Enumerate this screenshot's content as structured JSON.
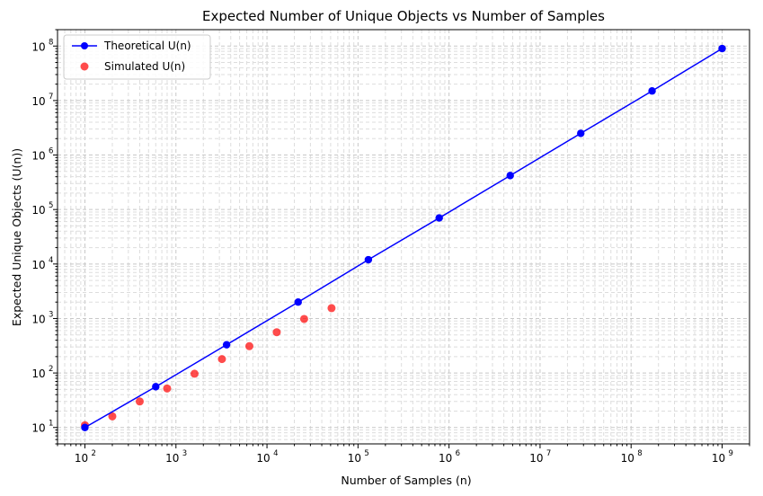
{
  "chart_data": {
    "type": "line",
    "title": "Expected Number of Unique Objects vs Number of Samples",
    "xlabel": "Number of Samples (n)",
    "ylabel": "Expected Unique Objects (U(n))",
    "xscale": "log",
    "yscale": "log",
    "xlim": [
      50,
      2000000000
    ],
    "ylim": [
      5,
      200000000
    ],
    "grid": true,
    "legend_position": "top-left",
    "x_ticks": [
      {
        "base": "10",
        "exp": "2",
        "value": 100
      },
      {
        "base": "10",
        "exp": "3",
        "value": 1000
      },
      {
        "base": "10",
        "exp": "4",
        "value": 10000
      },
      {
        "base": "10",
        "exp": "5",
        "value": 100000
      },
      {
        "base": "10",
        "exp": "6",
        "value": 1000000
      },
      {
        "base": "10",
        "exp": "7",
        "value": 10000000
      },
      {
        "base": "10",
        "exp": "8",
        "value": 100000000
      },
      {
        "base": "10",
        "exp": "9",
        "value": 1000000000
      }
    ],
    "y_ticks": [
      {
        "base": "10",
        "exp": "1",
        "value": 10
      },
      {
        "base": "10",
        "exp": "2",
        "value": 100
      },
      {
        "base": "10",
        "exp": "3",
        "value": 1000
      },
      {
        "base": "10",
        "exp": "4",
        "value": 10000
      },
      {
        "base": "10",
        "exp": "5",
        "value": 100000
      },
      {
        "base": "10",
        "exp": "6",
        "value": 1000000
      },
      {
        "base": "10",
        "exp": "7",
        "value": 10000000
      },
      {
        "base": "10",
        "exp": "8",
        "value": 100000000
      }
    ],
    "series": [
      {
        "name": "Theoretical U(n)",
        "kind": "line-marker",
        "color": "#0000ff",
        "x": [
          100,
          600,
          3600,
          22000,
          130000,
          780000,
          4700000,
          28000000,
          170000000,
          1000000000
        ],
        "y": [
          10,
          56,
          330,
          2000,
          12000,
          70000,
          420000,
          2500000,
          15000000,
          90000000
        ]
      },
      {
        "name": "Simulated U(n)",
        "kind": "scatter",
        "color": "#ff0000",
        "x": [
          100,
          200,
          400,
          800,
          1600,
          3200,
          6400,
          12800,
          25600,
          51200
        ],
        "y": [
          11,
          16,
          30,
          52,
          97,
          180,
          310,
          560,
          980,
          1550
        ]
      }
    ]
  }
}
